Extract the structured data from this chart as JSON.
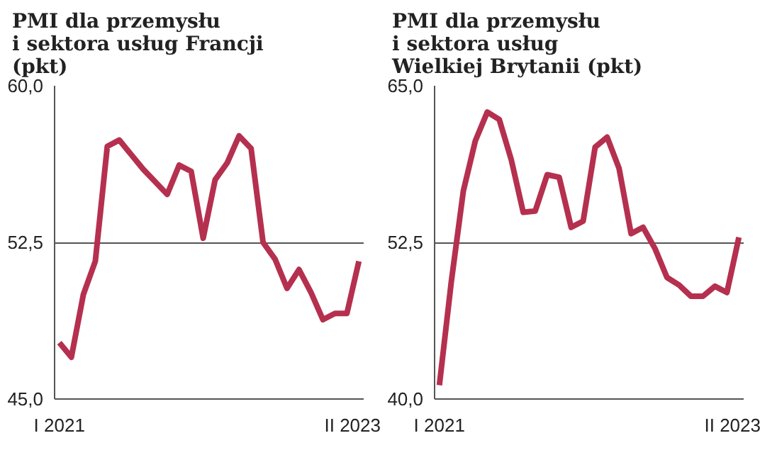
{
  "chart_data": [
    {
      "type": "line",
      "title": "PMI dla przemysłu\ni sektora usług Francji\n(pkt)",
      "categories": [
        "I 2021",
        null,
        null,
        null,
        null,
        null,
        null,
        null,
        null,
        null,
        null,
        null,
        null,
        null,
        null,
        null,
        null,
        null,
        null,
        null,
        null,
        null,
        null,
        null,
        null,
        "II 2023"
      ],
      "series": [
        {
          "color": "#b5304f",
          "values": [
            47.7,
            47.0,
            50.0,
            51.6,
            57.1,
            57.4,
            56.7,
            56.0,
            55.4,
            54.8,
            56.2,
            55.9,
            52.7,
            55.5,
            56.3,
            57.6,
            57.0,
            52.5,
            51.7,
            50.3,
            51.2,
            50.1,
            48.8,
            49.1,
            49.1,
            51.6
          ]
        }
      ],
      "ylim": [
        45,
        60
      ],
      "yticks": [
        {
          "value": 45,
          "label": "45,0"
        },
        {
          "value": 52.5,
          "label": "52,5"
        },
        {
          "value": 60,
          "label": "60,0"
        }
      ],
      "grid": "y",
      "marker": "none",
      "line_style": "solid"
    },
    {
      "type": "line",
      "title": "PMI dla przemysłu\ni sektora usług\nWielkiej Brytanii (pkt)",
      "categories": [
        "I 2021",
        null,
        null,
        null,
        null,
        null,
        null,
        null,
        null,
        null,
        null,
        null,
        null,
        null,
        null,
        null,
        null,
        null,
        null,
        null,
        null,
        null,
        null,
        null,
        null,
        "II 2023"
      ],
      "series": [
        {
          "color": "#b5304f",
          "values": [
            41.1,
            49.4,
            56.6,
            60.6,
            62.9,
            62.3,
            59.1,
            54.9,
            55.0,
            57.9,
            57.7,
            53.7,
            54.2,
            60.1,
            60.9,
            58.4,
            53.2,
            53.7,
            52.0,
            49.7,
            49.1,
            48.2,
            48.2,
            49.0,
            48.5,
            52.9
          ]
        }
      ],
      "ylim": [
        40,
        65
      ],
      "yticks": [
        {
          "value": 40,
          "label": "40,0"
        },
        {
          "value": 52.5,
          "label": "52,5"
        },
        {
          "value": 65,
          "label": "65,0"
        }
      ],
      "grid": "y",
      "marker": "none",
      "line_style": "solid"
    }
  ]
}
